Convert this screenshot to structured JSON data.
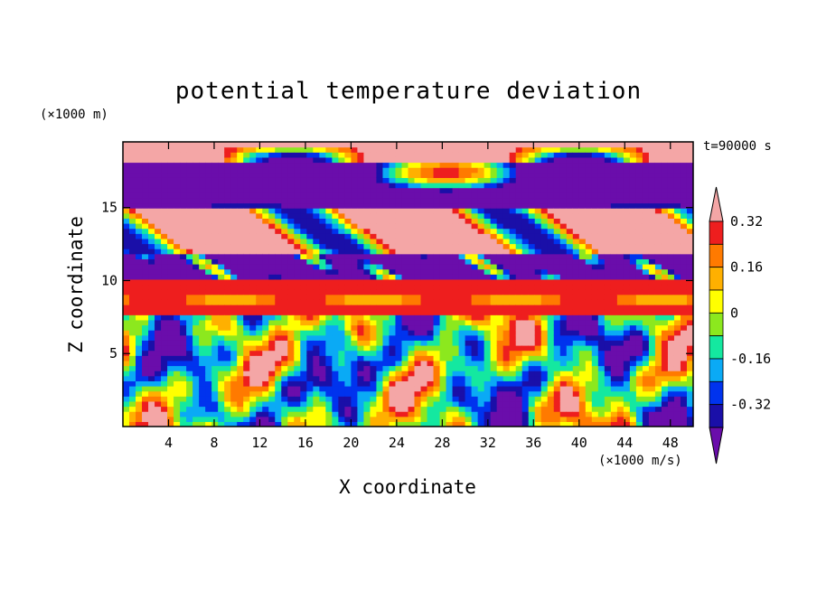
{
  "chart_data": {
    "type": "heatmap",
    "title": "potential temperature deviation",
    "xlabel": "X coordinate",
    "ylabel": "Z coordinate",
    "x_unit": "(×1000 m/s)",
    "z_unit": "(×1000 m)",
    "time_label": "t=90000 s",
    "xlim": [
      0,
      50
    ],
    "ylim": [
      0,
      19.5
    ],
    "x_ticks": [
      "4",
      "8",
      "12",
      "16",
      "20",
      "24",
      "28",
      "32",
      "36",
      "40",
      "44",
      "48"
    ],
    "x_tick_values": [
      4,
      8,
      12,
      16,
      20,
      24,
      28,
      32,
      36,
      40,
      44,
      48
    ],
    "y_ticks": [
      "5",
      "10",
      "15"
    ],
    "y_tick_values": [
      5,
      10,
      15
    ],
    "colorbar": {
      "labels": [
        "0.32",
        "0.16",
        "0",
        "-0.16",
        "-0.32"
      ],
      "label_values": [
        0.32,
        0.16,
        0,
        -0.16,
        -0.32
      ],
      "levels": [
        -0.4,
        -0.32,
        -0.24,
        -0.16,
        -0.08,
        0,
        0.08,
        0.16,
        0.24,
        0.32,
        0.4
      ],
      "colors": [
        "#6a0dab",
        "#1a0fa8",
        "#0033ee",
        "#0aaaf5",
        "#14e8a0",
        "#8ce81e",
        "#ffff00",
        "#ffb000",
        "#ff7a00",
        "#ee1e1e",
        "#f4a6a6"
      ]
    },
    "field_regions": [
      {
        "z_range": [
          18,
          19.5
        ],
        "value": 0.45,
        "note": "upper layer mostly pink"
      },
      {
        "z_range": [
          15,
          18
        ],
        "value": -0.45,
        "note": "purple band with pink patches"
      },
      {
        "z_range": [
          12,
          15
        ],
        "value": 0.45,
        "note": "pink lenses"
      },
      {
        "z_range": [
          10,
          12
        ],
        "value": -0.45,
        "note": "purple with noisy structure"
      },
      {
        "z_range": [
          9.2,
          10
        ],
        "value": 0.36,
        "note": "red band"
      },
      {
        "z_range": [
          8.3,
          9.2
        ],
        "value": 0.28,
        "note": "orange band"
      },
      {
        "z_range": [
          7.6,
          8.3
        ],
        "value": 0.36,
        "note": "red band"
      },
      {
        "z_range": [
          0,
          7.5
        ],
        "value": 0,
        "note": "mixed convective cells"
      }
    ]
  }
}
